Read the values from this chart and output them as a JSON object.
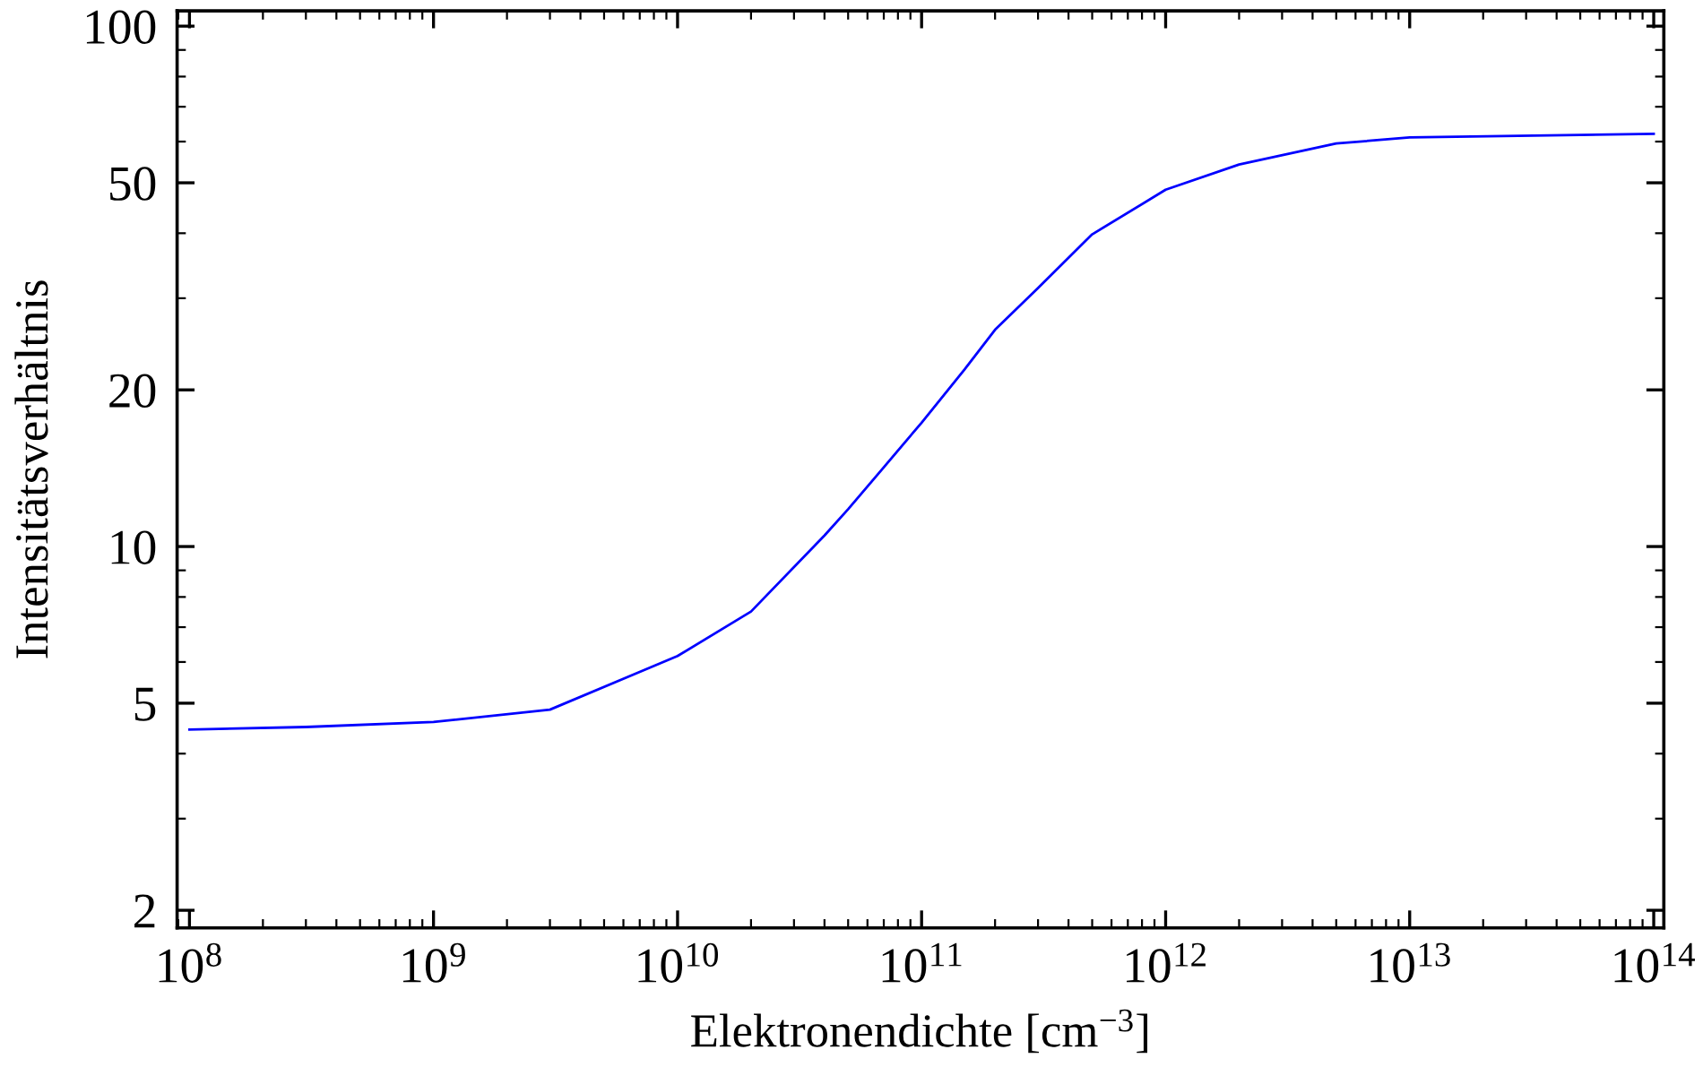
{
  "chart_data": {
    "type": "line",
    "xlabel": "Elektronendichte [cm$^{−3}$]",
    "ylabel": "Intensitätsverhältnis",
    "log": "xy",
    "grid": false,
    "legend": false,
    "line_style": "solid",
    "marker": "none",
    "x": [
      100000000.0,
      300000000.0,
      1000000000.0,
      3000000000.0,
      10000000000.0,
      20000000000.0,
      40000000000.0,
      50000000000.0,
      70000000000.0,
      100000000000.0,
      150000000000.0,
      200000000000.0,
      300000000000.0,
      500000000000.0,
      1000000000000.0,
      2000000000000.0,
      5000000000000.0,
      10000000000000.0,
      100000000000000.0
    ],
    "series": [
      {
        "color": "#0000ff",
        "values": [
          4.45,
          4.5,
          4.6,
          4.86,
          6.16,
          7.5,
          10.5,
          11.8,
          14.2,
          17.3,
          21.9,
          26.1,
          31.4,
          39.8,
          48.5,
          54.2,
          59.5,
          61.1,
          62.1
        ]
      }
    ],
    "xlim": [
      89000000.0,
      110000000000000.0
    ],
    "ylim": [
      1.85,
      107
    ],
    "xticks": [
      {
        "value": 100000000.0,
        "label": "10$^{8}$"
      },
      {
        "value": 1000000000.0,
        "label": "10$^{9}$"
      },
      {
        "value": 10000000000.0,
        "label": "10$^{10}$"
      },
      {
        "value": 100000000000.0,
        "label": "10$^{11}$"
      },
      {
        "value": 1000000000000.0,
        "label": "10$^{12}$"
      },
      {
        "value": 10000000000000.0,
        "label": "10$^{13}$"
      },
      {
        "value": 100000000000000.0,
        "label": "10$^{14}$"
      }
    ],
    "yticks": [
      2,
      5,
      10,
      20,
      50,
      100
    ]
  }
}
